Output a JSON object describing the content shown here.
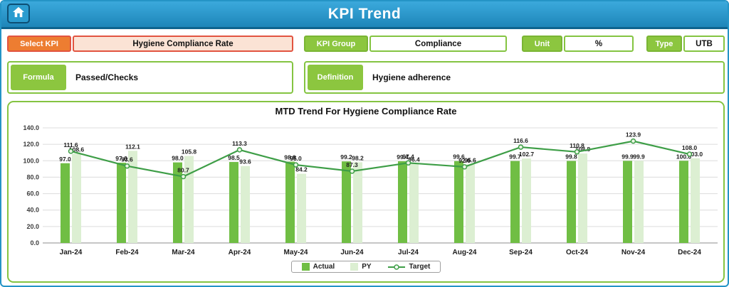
{
  "header": {
    "title": "KPI Trend",
    "home_icon": "home-icon"
  },
  "fields": {
    "select_kpi": {
      "label": "Select KPI",
      "value": "Hygiene Compliance Rate"
    },
    "kpi_group": {
      "label": "KPI Group",
      "value": "Compliance"
    },
    "unit": {
      "label": "Unit",
      "value": "%"
    },
    "type": {
      "label": "Type",
      "value": "UTB"
    },
    "formula": {
      "label": "Formula",
      "value": "Passed/Checks"
    },
    "definition": {
      "label": "Definition",
      "value": "Hygiene adherence"
    }
  },
  "colors": {
    "header_blue": "#2B9CCF",
    "accent_green": "#84C441",
    "label_green": "#8CC63F",
    "accent_orange": "#ED7D31",
    "select_border": "#E25440",
    "select_value_bg": "#FBE3D5"
  },
  "chart_data": {
    "type": "bar",
    "subtype": "grouped bars with target line overlay",
    "title": "MTD Trend For Hygiene Compliance Rate",
    "categories": [
      "Jan-24",
      "Feb-24",
      "Mar-24",
      "Apr-24",
      "May-24",
      "Jun-24",
      "Jul-24",
      "Aug-24",
      "Sep-24",
      "Oct-24",
      "Nov-24",
      "Dec-24"
    ],
    "series": [
      {
        "name": "Actual",
        "type": "bar",
        "color": "#70BE44",
        "values": [
          97.0,
          97.6,
          98.0,
          98.5,
          98.9,
          99.2,
          99.4,
          99.6,
          99.7,
          99.8,
          99.9,
          100.0
        ]
      },
      {
        "name": "PY",
        "type": "bar",
        "color": "#DCEFD2",
        "values": [
          108.6,
          112.1,
          105.8,
          93.6,
          84.2,
          98.2,
          96.4,
          95.6,
          102.7,
          108.8,
          99.9,
          103.0
        ]
      },
      {
        "name": "Target",
        "type": "line",
        "color": "#3E9E47",
        "values": [
          111.6,
          93.6,
          80.7,
          113.3,
          95.0,
          87.3,
          97.4,
          92.6,
          116.6,
          110.8,
          123.9,
          108.0
        ]
      }
    ],
    "ylim": [
      0,
      140
    ],
    "ytick_step": 20,
    "ytick_labels": [
      "0.0",
      "20.0",
      "40.0",
      "60.0",
      "80.0",
      "100.0",
      "120.0",
      "140.0"
    ],
    "grid": "horizontal",
    "legend_position": "bottom-center"
  }
}
